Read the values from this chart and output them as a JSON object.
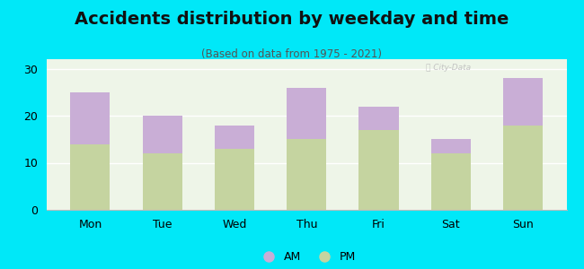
{
  "title": "Accidents distribution by weekday and time",
  "subtitle": "(Based on data from 1975 - 2021)",
  "categories": [
    "Mon",
    "Tue",
    "Wed",
    "Thu",
    "Fri",
    "Sat",
    "Sun"
  ],
  "pm_values": [
    14,
    12,
    13,
    15,
    17,
    12,
    18
  ],
  "am_values": [
    11,
    8,
    5,
    11,
    5,
    3,
    10
  ],
  "am_color": "#c9aed6",
  "pm_color": "#c5d4a0",
  "background_outer": "#00e8f8",
  "background_inner": "#eef5e8",
  "ylim": [
    0,
    32
  ],
  "yticks": [
    0,
    10,
    20,
    30
  ],
  "bar_width": 0.55,
  "legend_labels": [
    "AM",
    "PM"
  ],
  "title_fontsize": 14,
  "subtitle_fontsize": 8.5,
  "tick_fontsize": 9
}
